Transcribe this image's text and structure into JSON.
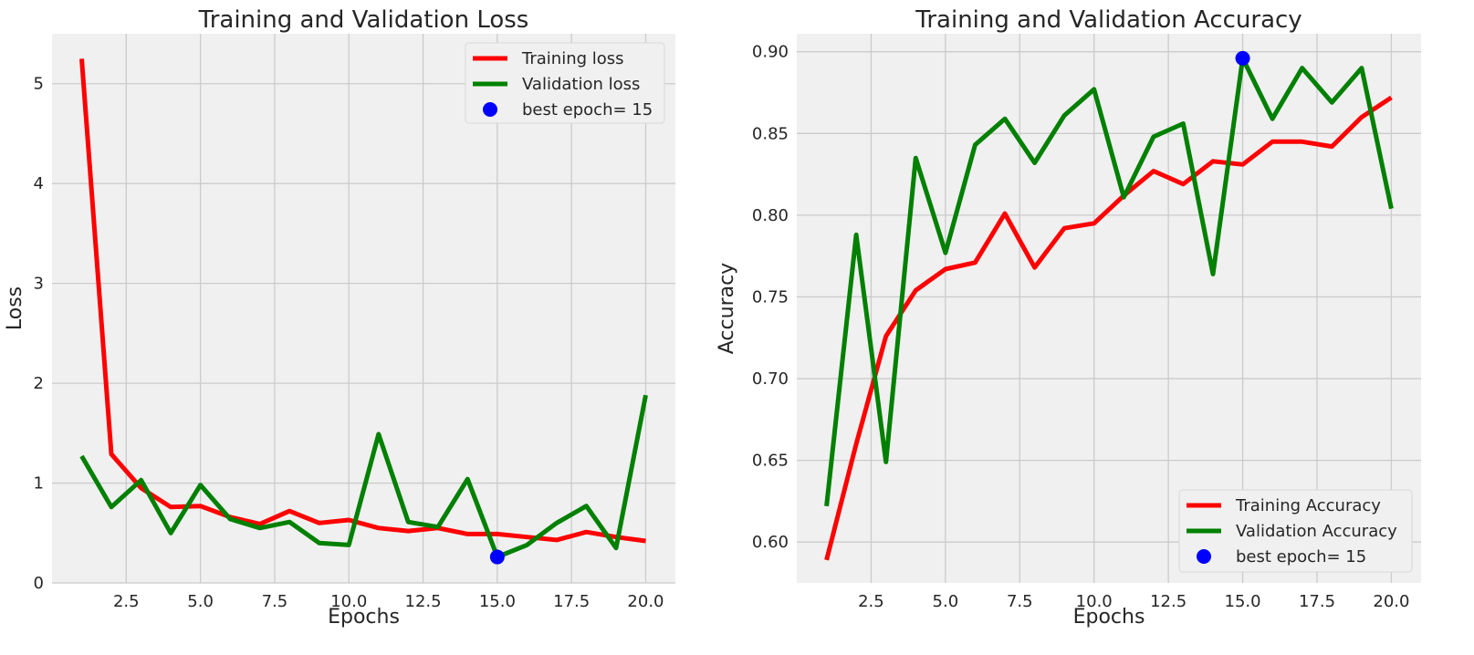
{
  "chart_data": [
    {
      "type": "line",
      "title": "Training and Validation Loss",
      "xlabel": "Epochs",
      "ylabel": "Loss",
      "xlim": [
        0,
        21
      ],
      "ylim": [
        0,
        5.5
      ],
      "xticks": [
        "2.5",
        "5.0",
        "7.5",
        "10.0",
        "12.5",
        "15.0",
        "17.5",
        "20.0"
      ],
      "yticks": [
        "0",
        "1",
        "2",
        "3",
        "4",
        "5"
      ],
      "grid": true,
      "legend_position": "top-right",
      "x": [
        1,
        2,
        3,
        4,
        5,
        6,
        7,
        8,
        9,
        10,
        11,
        12,
        13,
        14,
        15,
        16,
        17,
        18,
        19,
        20
      ],
      "series": [
        {
          "name": "Training loss",
          "color": "#ff0000",
          "values": [
            5.25,
            1.29,
            0.95,
            0.76,
            0.77,
            0.66,
            0.59,
            0.72,
            0.6,
            0.63,
            0.55,
            0.52,
            0.55,
            0.49,
            0.49,
            0.46,
            0.43,
            0.51,
            0.46,
            0.42
          ]
        },
        {
          "name": "Validation loss",
          "color": "#008000",
          "values": [
            1.27,
            0.76,
            1.03,
            0.5,
            0.98,
            0.64,
            0.55,
            0.61,
            0.4,
            0.38,
            1.49,
            0.61,
            0.56,
            1.04,
            0.26,
            0.38,
            0.6,
            0.77,
            0.35,
            1.88
          ]
        }
      ],
      "marker": {
        "name": "best epoch= 15",
        "x": 15,
        "y": 0.26,
        "color": "#0000ff"
      }
    },
    {
      "type": "line",
      "title": "Training and Validation Accuracy",
      "xlabel": "Epochs",
      "ylabel": "Accuracy",
      "xlim": [
        0,
        21
      ],
      "ylim": [
        0.575,
        0.911
      ],
      "xticks": [
        "2.5",
        "5.0",
        "7.5",
        "10.0",
        "12.5",
        "15.0",
        "17.5",
        "20.0"
      ],
      "yticks": [
        "0.60",
        "0.65",
        "0.70",
        "0.75",
        "0.80",
        "0.85",
        "0.90"
      ],
      "grid": true,
      "legend_position": "bottom-right",
      "x": [
        1,
        2,
        3,
        4,
        5,
        6,
        7,
        8,
        9,
        10,
        11,
        12,
        13,
        14,
        15,
        16,
        17,
        18,
        19,
        20
      ],
      "series": [
        {
          "name": "Training Accuracy",
          "color": "#ff0000",
          "values": [
            0.589,
            0.66,
            0.726,
            0.754,
            0.767,
            0.771,
            0.801,
            0.768,
            0.792,
            0.795,
            0.812,
            0.827,
            0.819,
            0.833,
            0.831,
            0.845,
            0.845,
            0.842,
            0.86,
            0.872
          ]
        },
        {
          "name": "Validation Accuracy",
          "color": "#008000",
          "values": [
            0.622,
            0.788,
            0.649,
            0.835,
            0.777,
            0.843,
            0.859,
            0.832,
            0.861,
            0.877,
            0.811,
            0.848,
            0.856,
            0.764,
            0.896,
            0.859,
            0.89,
            0.869,
            0.89,
            0.804
          ]
        }
      ],
      "marker": {
        "name": "best epoch= 15",
        "x": 15,
        "y": 0.896,
        "color": "#0000ff"
      }
    }
  ]
}
